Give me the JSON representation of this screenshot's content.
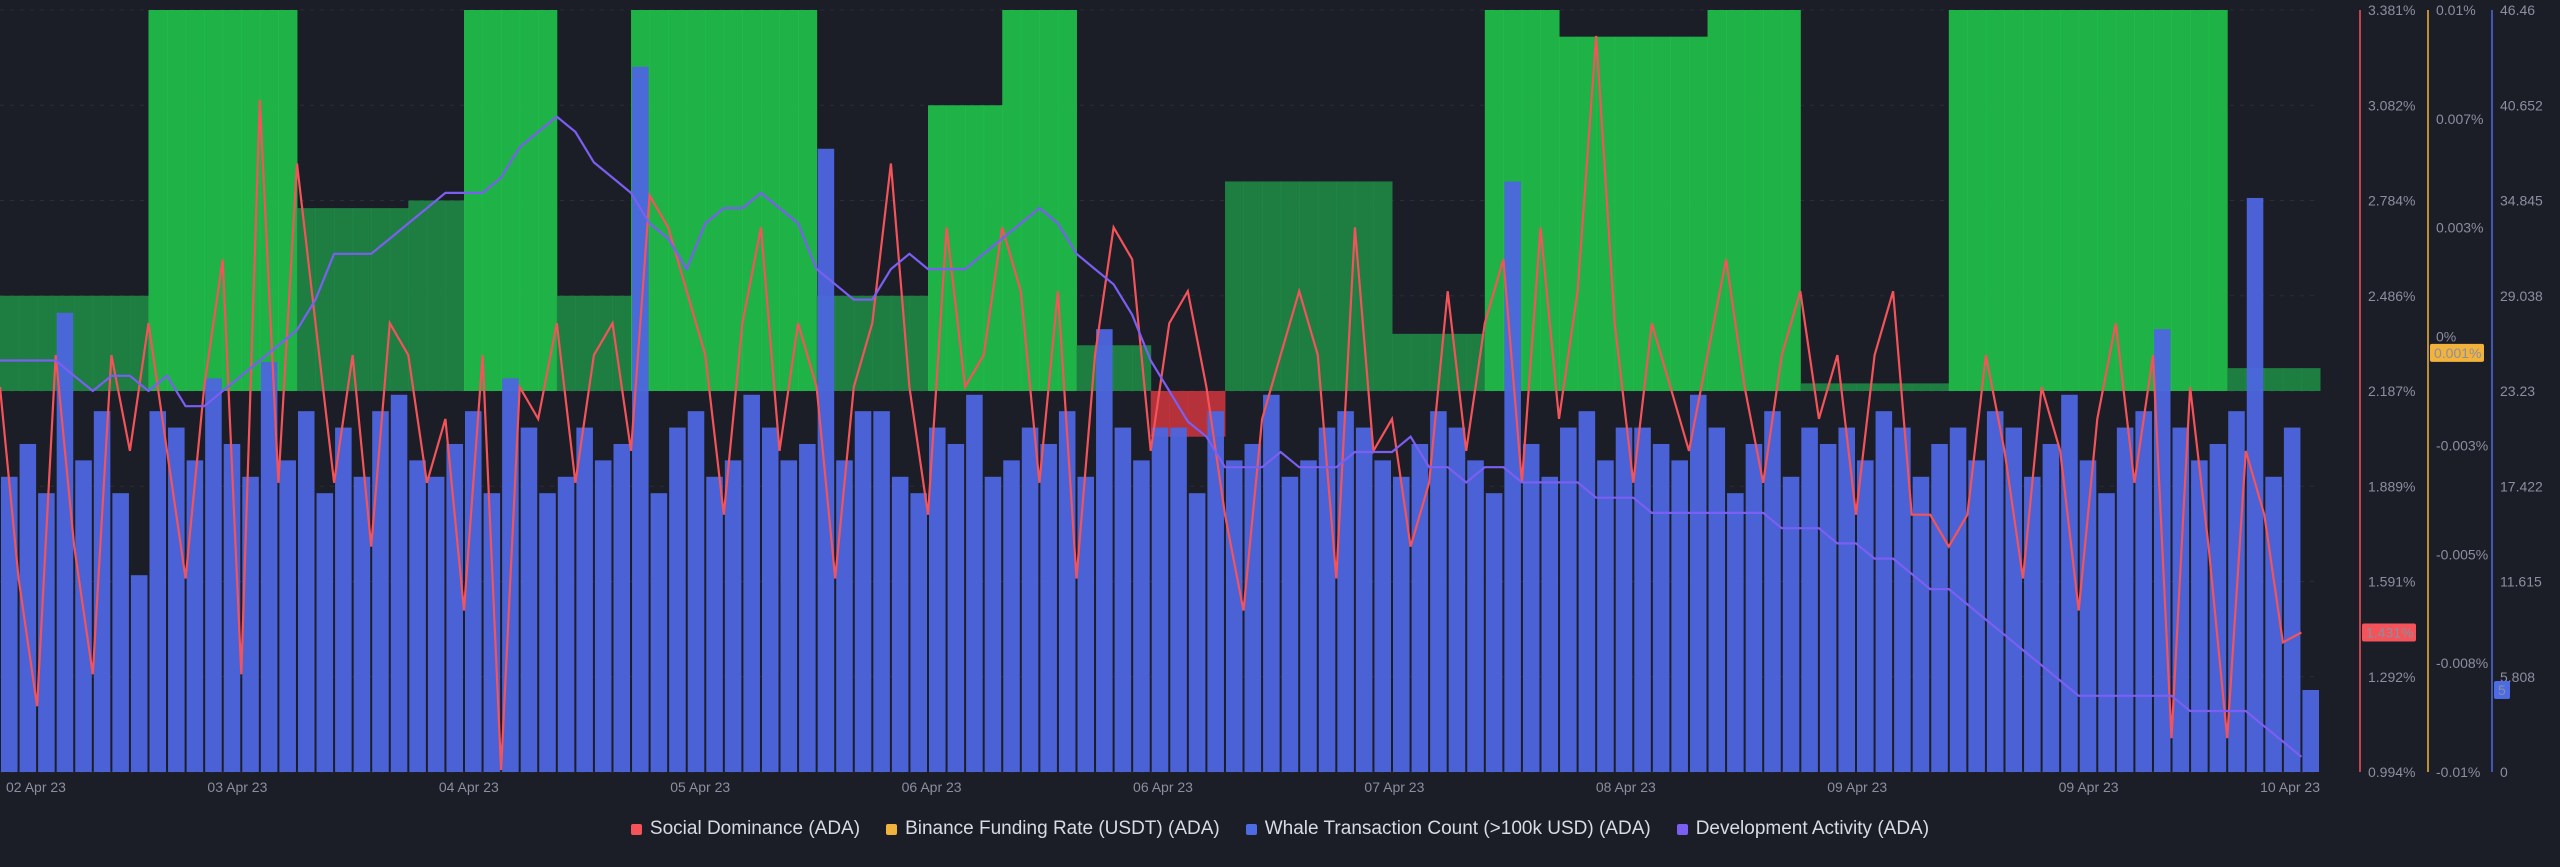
{
  "chart_data": {
    "type": "bar",
    "title": "",
    "x_labels": [
      "02 Apr 23",
      "03 Apr 23",
      "04 Apr 23",
      "05 Apr 23",
      "06 Apr 23",
      "06 Apr 23",
      "07 Apr 23",
      "08 Apr 23",
      "09 Apr 23",
      "09 Apr 23",
      "10 Apr 23"
    ],
    "axes": {
      "social_dominance": {
        "ticks": [
          "3.381%",
          "3.082%",
          "2.784%",
          "2.486%",
          "2.187%",
          "1.889%",
          "1.591%",
          "1.292%",
          "0.994%"
        ],
        "range": [
          0.994,
          3.381
        ],
        "unit": "%",
        "color": "#f4535a",
        "current_value": "1.431%"
      },
      "funding_rate": {
        "ticks": [
          "0.01%",
          "0.007%",
          "0.003%",
          "0%",
          "-0.003%",
          "-0.005%",
          "-0.008%",
          "-0.01%"
        ],
        "range": [
          -0.01,
          0.01
        ],
        "color": "#f2b33d",
        "current_value": "0.001%"
      },
      "whale_count": {
        "ticks": [
          "46.46",
          "40.652",
          "34.845",
          "29.038",
          "23.23",
          "17.422",
          "11.615",
          "5.808",
          "0"
        ],
        "range": [
          0,
          46.46
        ],
        "color": "#4d6be3",
        "current_value": "5"
      }
    },
    "legend": [
      {
        "name": "Social Dominance (ADA)",
        "color": "#f4535a"
      },
      {
        "name": "Binance Funding Rate (USDT) (ADA)",
        "color": "#f2b33d"
      },
      {
        "name": "Whale Transaction Count (>100k USD) (ADA)",
        "color": "#4d6be3"
      },
      {
        "name": "Development Activity (ADA)",
        "color": "#7b5ef2"
      }
    ],
    "series": [
      {
        "name": "Binance Funding Rate (USDT) (ADA)",
        "kind": "bars",
        "x": [
          0,
          8,
          16,
          24,
          32,
          40,
          48,
          56,
          64,
          72,
          80,
          88,
          96,
          104,
          112,
          120,
          128,
          136,
          144,
          152,
          160,
          168,
          176,
          184,
          192,
          200,
          208,
          216,
          224,
          232,
          240,
          248,
          256,
          264,
          272,
          280,
          288,
          296,
          304,
          312,
          320,
          328,
          336,
          344,
          352,
          360,
          368,
          376,
          384,
          392,
          400,
          408,
          416,
          424,
          432,
          440,
          448,
          456,
          464,
          472,
          480,
          488,
          496,
          504,
          512,
          520,
          528,
          536,
          544,
          552,
          560,
          568,
          576,
          584,
          592,
          600,
          608,
          616,
          624,
          632,
          640,
          648,
          656,
          664,
          672,
          680,
          688,
          696,
          704,
          712,
          720,
          728,
          736,
          744,
          752,
          760,
          768,
          776,
          784,
          792,
          800,
          808,
          816,
          824,
          832,
          840,
          848,
          856,
          864,
          872,
          880,
          888,
          896,
          904,
          912,
          920,
          928,
          936,
          944,
          952,
          960,
          968,
          976,
          984,
          992
        ],
        "values": [
          0.0025,
          0.0025,
          0.0025,
          0.0025,
          0.0025,
          0.0025,
          0.0025,
          0.0025,
          0.01,
          0.01,
          0.01,
          0.01,
          0.01,
          0.01,
          0.01,
          0.01,
          0.0048,
          0.0048,
          0.0048,
          0.0048,
          0.0048,
          0.0048,
          0.005,
          0.005,
          0.005,
          0.01,
          0.01,
          0.01,
          0.01,
          0.01,
          0.0025,
          0.0025,
          0.0025,
          0.0025,
          0.01,
          0.01,
          0.01,
          0.01,
          0.01,
          0.01,
          0.01,
          0.01,
          0.01,
          0.01,
          0.0025,
          0.0025,
          0.0025,
          0.0025,
          0.0025,
          0.0025,
          0.0075,
          0.0075,
          0.0075,
          0.0075,
          0.01,
          0.01,
          0.01,
          0.01,
          0.0012,
          0.0012,
          0.0012,
          0.0012,
          -0.0012,
          -0.0012,
          -0.0012,
          -0.0012,
          0.0055,
          0.0055,
          0.0055,
          0.0055,
          0.0055,
          0.0055,
          0.0055,
          0.0055,
          0.0055,
          0.0015,
          0.0015,
          0.0015,
          0.0015,
          0.0015,
          0.01,
          0.01,
          0.01,
          0.01,
          0.0093,
          0.0093,
          0.0093,
          0.0093,
          0.0093,
          0.0093,
          0.0093,
          0.0093,
          0.01,
          0.01,
          0.01,
          0.01,
          0.01,
          0.0002,
          0.0002,
          0.0002,
          0.0002,
          0.0002,
          0.0002,
          0.0002,
          0.0002,
          0.01,
          0.01,
          0.01,
          0.01,
          0.01,
          0.01,
          0.01,
          0.01,
          0.01,
          0.01,
          0.01,
          0.01,
          0.01,
          0.01,
          0.01,
          0.0006,
          0.0006,
          0.0006,
          0.0006,
          0.0006
        ]
      },
      {
        "name": "Social Dominance (ADA)",
        "kind": "line",
        "x": [
          0,
          8,
          16,
          24,
          32,
          40,
          48,
          56,
          64,
          72,
          80,
          88,
          96,
          104,
          112,
          120,
          128,
          136,
          144,
          152,
          160,
          168,
          176,
          184,
          192,
          200,
          208,
          216,
          224,
          232,
          240,
          248,
          256,
          264,
          272,
          280,
          288,
          296,
          304,
          312,
          320,
          328,
          336,
          344,
          352,
          360,
          368,
          376,
          384,
          392,
          400,
          408,
          416,
          424,
          432,
          440,
          448,
          456,
          464,
          472,
          480,
          488,
          496,
          504,
          512,
          520,
          528,
          536,
          544,
          552,
          560,
          568,
          576,
          584,
          592,
          600,
          608,
          616,
          624,
          632,
          640,
          648,
          656,
          664,
          672,
          680,
          688,
          696,
          704,
          712,
          720,
          728,
          736,
          744,
          752,
          760,
          768,
          776,
          784,
          792,
          800,
          808,
          816,
          824,
          832,
          840,
          848,
          856,
          864,
          872,
          880,
          888,
          896,
          904,
          912,
          920,
          928,
          936,
          944,
          952,
          960,
          968,
          976,
          984,
          992
        ],
        "values": [
          2.2,
          1.6,
          1.2,
          2.3,
          1.7,
          1.3,
          2.3,
          2.0,
          2.4,
          2.0,
          1.6,
          2.2,
          2.6,
          1.3,
          3.1,
          1.9,
          2.9,
          2.4,
          1.9,
          2.3,
          1.7,
          2.4,
          2.3,
          1.9,
          2.1,
          1.5,
          2.3,
          1.0,
          2.2,
          2.1,
          2.4,
          1.9,
          2.3,
          2.4,
          2.0,
          2.8,
          2.7,
          2.5,
          2.3,
          1.8,
          2.4,
          2.7,
          2.0,
          2.4,
          2.2,
          1.6,
          2.2,
          2.4,
          2.9,
          2.2,
          1.8,
          2.7,
          2.2,
          2.3,
          2.7,
          2.5,
          1.9,
          2.5,
          1.6,
          2.3,
          2.7,
          2.6,
          2.0,
          2.4,
          2.5,
          2.2,
          1.8,
          1.5,
          2.1,
          2.3,
          2.5,
          2.3,
          1.6,
          2.7,
          2.0,
          2.1,
          1.7,
          1.9,
          2.5,
          2.0,
          2.4,
          2.6,
          1.9,
          2.7,
          2.1,
          2.5,
          3.3,
          2.4,
          1.9,
          2.4,
          2.2,
          2.0,
          2.3,
          2.6,
          2.2,
          1.9,
          2.3,
          2.5,
          2.1,
          2.3,
          1.8,
          2.3,
          2.5,
          1.8,
          1.8,
          1.7,
          1.8,
          2.3,
          2.0,
          1.6,
          2.2,
          2.0,
          1.5,
          2.1,
          2.4,
          1.9,
          2.3,
          1.1,
          2.2,
          1.7,
          1.1,
          2.0,
          1.8,
          1.4,
          1.431
        ]
      },
      {
        "name": "Whale Transaction Count (>100k USD) (ADA)",
        "kind": "bars",
        "x": [
          0,
          8,
          16,
          24,
          32,
          40,
          48,
          56,
          64,
          72,
          80,
          88,
          96,
          104,
          112,
          120,
          128,
          136,
          144,
          152,
          160,
          168,
          176,
          184,
          192,
          200,
          208,
          216,
          224,
          232,
          240,
          248,
          256,
          264,
          272,
          280,
          288,
          296,
          304,
          312,
          320,
          328,
          336,
          344,
          352,
          360,
          368,
          376,
          384,
          392,
          400,
          408,
          416,
          424,
          432,
          440,
          448,
          456,
          464,
          472,
          480,
          488,
          496,
          504,
          512,
          520,
          528,
          536,
          544,
          552,
          560,
          568,
          576,
          584,
          592,
          600,
          608,
          616,
          624,
          632,
          640,
          648,
          656,
          664,
          672,
          680,
          688,
          696,
          704,
          712,
          720,
          728,
          736,
          744,
          752,
          760,
          768,
          776,
          784,
          792,
          800,
          808,
          816,
          824,
          832,
          840,
          848,
          856,
          864,
          872,
          880,
          888,
          896,
          904,
          912,
          920,
          928,
          936,
          944,
          952,
          960,
          968,
          976,
          984,
          992
        ],
        "values": [
          18,
          20,
          17,
          28,
          19,
          22,
          17,
          12,
          22,
          21,
          19,
          24,
          20,
          18,
          25,
          19,
          22,
          17,
          21,
          18,
          22,
          23,
          19,
          18,
          20,
          22,
          17,
          24,
          21,
          17,
          18,
          21,
          19,
          20,
          43,
          17,
          21,
          22,
          18,
          19,
          23,
          21,
          19,
          20,
          38,
          19,
          22,
          22,
          18,
          17,
          21,
          20,
          23,
          18,
          19,
          21,
          20,
          22,
          18,
          27,
          21,
          19,
          21,
          21,
          17,
          22,
          19,
          20,
          23,
          18,
          19,
          21,
          22,
          21,
          19,
          18,
          20,
          22,
          21,
          19,
          17,
          36,
          20,
          18,
          21,
          22,
          19,
          21,
          21,
          20,
          19,
          23,
          21,
          17,
          20,
          22,
          18,
          21,
          20,
          21,
          19,
          22,
          21,
          18,
          20,
          21,
          19,
          22,
          21,
          18,
          20,
          23,
          19,
          17,
          21,
          22,
          27,
          21,
          19,
          20,
          22,
          35,
          18,
          21,
          5
        ]
      },
      {
        "name": "Development Activity (ADA)",
        "kind": "line",
        "x": [
          0,
          8,
          16,
          24,
          32,
          40,
          48,
          56,
          64,
          72,
          80,
          88,
          96,
          104,
          112,
          120,
          128,
          136,
          144,
          152,
          160,
          168,
          176,
          184,
          192,
          200,
          208,
          216,
          224,
          232,
          240,
          248,
          256,
          264,
          272,
          280,
          288,
          296,
          304,
          312,
          320,
          328,
          336,
          344,
          352,
          360,
          368,
          376,
          384,
          392,
          400,
          408,
          416,
          424,
          432,
          440,
          448,
          456,
          464,
          472,
          480,
          488,
          496,
          504,
          512,
          520,
          528,
          536,
          544,
          552,
          560,
          568,
          576,
          584,
          592,
          600,
          608,
          616,
          624,
          632,
          640,
          648,
          656,
          664,
          672,
          680,
          688,
          696,
          704,
          712,
          720,
          728,
          736,
          744,
          752,
          760,
          768,
          776,
          784,
          792,
          800,
          808,
          816,
          824,
          832,
          840,
          848,
          856,
          864,
          872,
          880,
          888,
          896,
          904,
          912,
          920,
          928,
          936,
          944,
          952,
          960,
          968,
          976,
          984,
          992
        ],
        "values": [
          27,
          27,
          27,
          27,
          26,
          25,
          26,
          26,
          25,
          26,
          24,
          24,
          25,
          26,
          27,
          28,
          29,
          31,
          34,
          34,
          34,
          35,
          36,
          37,
          38,
          38,
          38,
          39,
          41,
          42,
          43,
          42,
          40,
          39,
          38,
          36,
          35,
          33,
          36,
          37,
          37,
          38,
          37,
          36,
          33,
          32,
          31,
          31,
          33,
          34,
          33,
          33,
          33,
          34,
          35,
          36,
          37,
          36,
          34,
          33,
          32,
          30,
          27,
          25,
          23,
          22,
          20,
          20,
          20,
          21,
          20,
          20,
          20,
          21,
          21,
          21,
          22,
          20,
          20,
          19,
          20,
          20,
          19,
          19,
          19,
          19,
          18,
          18,
          18,
          17,
          17,
          17,
          17,
          17,
          17,
          17,
          16,
          16,
          16,
          15,
          15,
          14,
          14,
          13,
          12,
          12,
          11,
          10,
          9,
          8,
          7,
          6,
          5,
          5,
          5,
          5,
          5,
          5,
          4,
          4,
          4,
          4,
          3,
          2,
          1
        ]
      }
    ]
  }
}
